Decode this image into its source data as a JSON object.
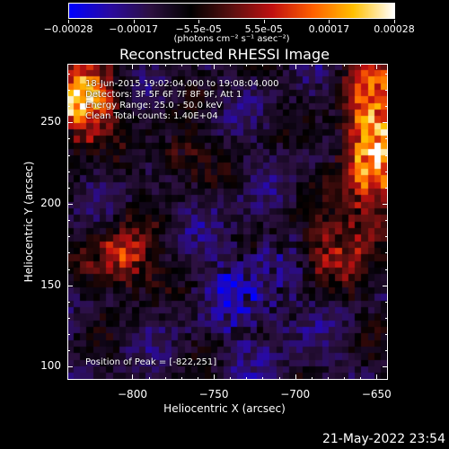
{
  "colorbar": {
    "tick_labels": [
      "-0.00028",
      "-0.00017",
      "-5.5e-05",
      "5.5e-05",
      "0.00017",
      "0.00028"
    ],
    "units": "(photons cm⁻² s⁻¹ asec⁻²)",
    "colors": [
      "#0000ff",
      "#2a0aa0",
      "#2c1040",
      "#000000",
      "#5a1010",
      "#c01010",
      "#ff6000",
      "#ffc000",
      "#ffffff"
    ]
  },
  "chart_data": {
    "type": "heatmap",
    "title": "Reconstructed RHESSI Image",
    "xlabel": "Heliocentric X (arcsec)",
    "ylabel": "Heliocentric Y (arcsec)",
    "xlim": [
      -840,
      -643
    ],
    "ylim": [
      92,
      286
    ],
    "x_ticks": [
      -800,
      -750,
      -700,
      -650
    ],
    "x_tick_labels": [
      "−800",
      "−750",
      "−700",
      "−650"
    ],
    "y_ticks": [
      100,
      150,
      200,
      250
    ],
    "y_tick_labels": [
      "100",
      "150",
      "200",
      "250"
    ],
    "zlim": [
      -0.00028,
      0.00028
    ],
    "grid_cols": 49,
    "grid_rows": 48,
    "peak": [
      -822,
      251
    ],
    "annotations": {
      "time_range": "18-Jun-2015 19:02:04.000 to 19:08:04.000",
      "detectors": "Detectors: 3F 5F 6F 7F 8F 9F, Att 1",
      "energy_range": "Energy Range: 25.0 - 50.0 keV",
      "method_counts": "Clean    Total counts: 1.40E+04",
      "peak_position": "Position of Peak = [-822,251]"
    }
  },
  "footer": {
    "date": "21-May-2022 23:54"
  }
}
